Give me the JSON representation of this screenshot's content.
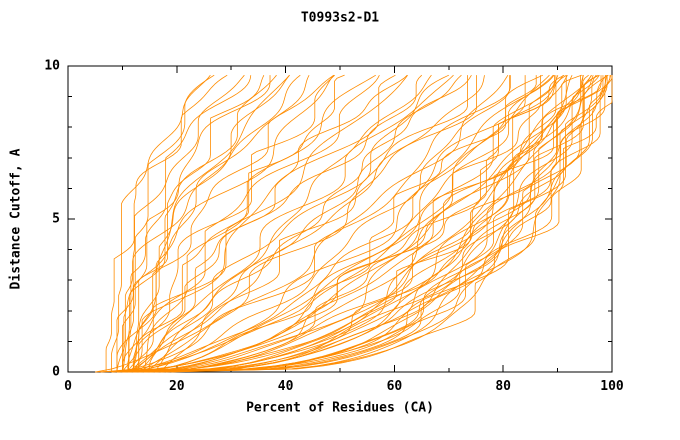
{
  "page": {
    "title": "T0993s2-D1"
  },
  "chart_data": {
    "type": "line",
    "title": "T0993s2-D1",
    "xlabel": "Percent of Residues (CA)",
    "ylabel": "Distance Cutoff, A",
    "xlim": [
      0,
      100
    ],
    "ylim": [
      0,
      10
    ],
    "x_ticks": [
      0,
      20,
      40,
      60,
      80,
      100
    ],
    "y_ticks": [
      0,
      5,
      10
    ],
    "x_minor_ticks": [
      10,
      30,
      50,
      70,
      90
    ],
    "y_minor_ticks": [
      1,
      2,
      3,
      4,
      6,
      7,
      8,
      9
    ],
    "grid": false,
    "legend": null,
    "line_color": "#ff8c00",
    "axis_color": "#000000",
    "curve_count": 72,
    "curve_format": "[percent_of_residues_at_cutoff_0, percent_of_residues_at_cutoff_10, shape_exponent] per model curve; x(y) = x0 + (x10 - x0) * (y/10)^a, estimated from plot",
    "y_max_drawn": 9.7,
    "curves": [
      [
        8,
        27,
        2.8
      ],
      [
        10,
        29,
        3.0
      ],
      [
        7,
        31,
        2.5
      ],
      [
        11,
        33,
        2.6
      ],
      [
        9,
        35,
        2.4
      ],
      [
        12,
        37,
        2.2
      ],
      [
        10,
        39,
        2.3
      ],
      [
        11,
        41,
        2.0
      ],
      [
        13,
        43,
        2.1
      ],
      [
        9,
        45,
        1.9
      ],
      [
        12,
        46,
        2.0
      ],
      [
        10,
        48,
        1.8
      ],
      [
        11,
        50,
        1.6
      ],
      [
        13,
        52,
        1.5
      ],
      [
        9,
        54,
        1.6
      ],
      [
        12,
        56,
        1.4
      ],
      [
        14,
        58,
        1.5
      ],
      [
        10,
        60,
        1.3
      ],
      [
        15,
        62,
        1.4
      ],
      [
        11,
        64,
        1.2
      ],
      [
        12,
        66,
        1.3
      ],
      [
        16,
        68,
        1.1
      ],
      [
        10,
        70,
        1.2
      ],
      [
        13,
        72,
        1.1
      ],
      [
        11,
        74,
        1.0
      ],
      [
        17,
        75,
        1.05
      ],
      [
        12,
        76,
        1.0
      ],
      [
        14,
        78,
        0.95
      ],
      [
        11,
        79,
        0.9
      ],
      [
        13,
        80,
        0.9
      ],
      [
        9,
        82,
        0.7
      ],
      [
        11,
        83,
        0.65
      ],
      [
        5,
        84,
        0.7
      ],
      [
        13,
        85,
        0.6
      ],
      [
        10,
        86,
        0.62
      ],
      [
        12,
        87,
        0.58
      ],
      [
        8,
        88,
        0.6
      ],
      [
        14,
        88,
        0.55
      ],
      [
        11,
        89,
        0.5
      ],
      [
        6,
        90,
        0.55
      ],
      [
        15,
        90,
        0.5
      ],
      [
        10,
        91,
        0.52
      ],
      [
        12,
        91,
        0.48
      ],
      [
        8,
        92,
        0.5
      ],
      [
        13,
        92,
        0.45
      ],
      [
        11,
        93,
        0.48
      ],
      [
        16,
        93,
        0.42
      ],
      [
        5,
        94,
        0.45
      ],
      [
        14,
        94,
        0.4
      ],
      [
        10,
        95,
        0.42
      ],
      [
        12,
        95,
        0.38
      ],
      [
        17,
        95,
        0.4
      ],
      [
        9,
        96,
        0.4
      ],
      [
        15,
        96,
        0.36
      ],
      [
        11,
        96,
        0.38
      ],
      [
        13,
        97,
        0.35
      ],
      [
        6,
        97,
        0.37
      ],
      [
        18,
        97,
        0.33
      ],
      [
        10,
        98,
        0.35
      ],
      [
        14,
        98,
        0.32
      ],
      [
        12,
        98,
        0.34
      ],
      [
        16,
        98,
        0.3
      ],
      [
        9,
        99,
        0.32
      ],
      [
        11,
        99,
        0.3
      ],
      [
        19,
        99,
        0.28
      ],
      [
        13,
        99,
        0.3
      ],
      [
        15,
        100,
        0.28
      ],
      [
        10,
        100,
        0.3
      ],
      [
        12,
        100,
        0.27
      ],
      [
        17,
        100,
        0.26
      ],
      [
        8,
        100,
        0.28
      ],
      [
        14,
        100,
        0.25
      ]
    ]
  }
}
